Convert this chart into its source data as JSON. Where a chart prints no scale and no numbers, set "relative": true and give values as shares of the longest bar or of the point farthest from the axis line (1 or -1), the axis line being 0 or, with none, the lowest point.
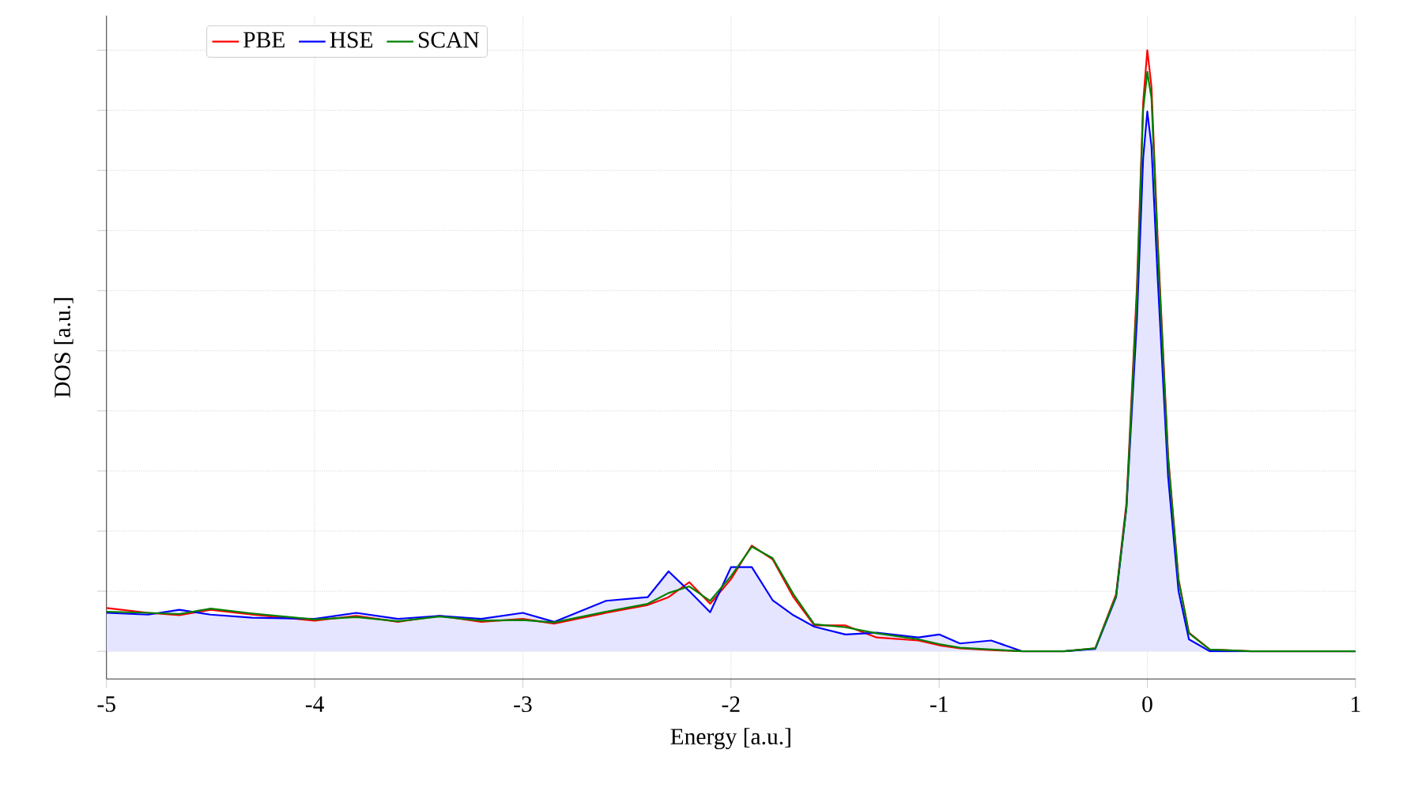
{
  "chart_data": {
    "type": "line",
    "xlabel": "Energy [a.u.]",
    "ylabel": "DOS [a.u.]",
    "relative": true,
    "xlim": [
      -5,
      1
    ],
    "xticks": [
      -5,
      -4,
      -3,
      -2,
      -1,
      0,
      1
    ],
    "grid": true,
    "legend": "top left",
    "x": [
      -5,
      -4.8,
      -4.65,
      -4.5,
      -4.3,
      -4.0,
      -3.8,
      -3.6,
      -3.4,
      -3.2,
      -3.0,
      -2.85,
      -2.6,
      -2.4,
      -2.3,
      -2.2,
      -2.1,
      -2.0,
      -1.9,
      -1.8,
      -1.7,
      -1.6,
      -1.45,
      -1.3,
      -1.1,
      -1.0,
      -0.9,
      -0.75,
      -0.6,
      -0.4,
      -0.25,
      -0.15,
      -0.1,
      -0.05,
      -0.02,
      0,
      0.02,
      0.05,
      0.1,
      0.15,
      0.2,
      0.3,
      0.5,
      1.0
    ],
    "series": [
      {
        "name": "PBE",
        "color": "#ff0000",
        "values": [
          0.072,
          0.064,
          0.06,
          0.069,
          0.061,
          0.051,
          0.059,
          0.049,
          0.059,
          0.049,
          0.054,
          0.046,
          0.064,
          0.077,
          0.09,
          0.115,
          0.079,
          0.12,
          0.176,
          0.153,
          0.09,
          0.043,
          0.043,
          0.023,
          0.018,
          0.01,
          0.005,
          0.002,
          0,
          0,
          0.005,
          0.095,
          0.248,
          0.606,
          0.913,
          1,
          0.939,
          0.683,
          0.325,
          0.12,
          0.031,
          0.003,
          0,
          0
        ]
      },
      {
        "name": "HSE",
        "type": "area",
        "color": "#0000ff",
        "values": [
          0.064,
          0.061,
          0.069,
          0.061,
          0.056,
          0.054,
          0.064,
          0.054,
          0.059,
          0.054,
          0.064,
          0.049,
          0.084,
          0.09,
          0.133,
          0.1,
          0.065,
          0.14,
          0.14,
          0.085,
          0.06,
          0.041,
          0.028,
          0.031,
          0.023,
          0.028,
          0.013,
          0.018,
          0,
          0,
          0.004,
          0.09,
          0.24,
          0.55,
          0.82,
          0.898,
          0.84,
          0.62,
          0.29,
          0.1,
          0.02,
          0,
          0,
          0
        ]
      },
      {
        "name": "SCAN",
        "color": "#008000",
        "values": [
          0.066,
          0.064,
          0.062,
          0.071,
          0.063,
          0.053,
          0.057,
          0.05,
          0.058,
          0.051,
          0.052,
          0.048,
          0.066,
          0.079,
          0.097,
          0.108,
          0.084,
          0.125,
          0.174,
          0.155,
          0.095,
          0.045,
          0.04,
          0.03,
          0.02,
          0.012,
          0.006,
          0.003,
          0,
          0,
          0.005,
          0.092,
          0.24,
          0.59,
          0.9,
          0.964,
          0.92,
          0.67,
          0.32,
          0.118,
          0.03,
          0.003,
          0,
          0
        ]
      }
    ]
  }
}
